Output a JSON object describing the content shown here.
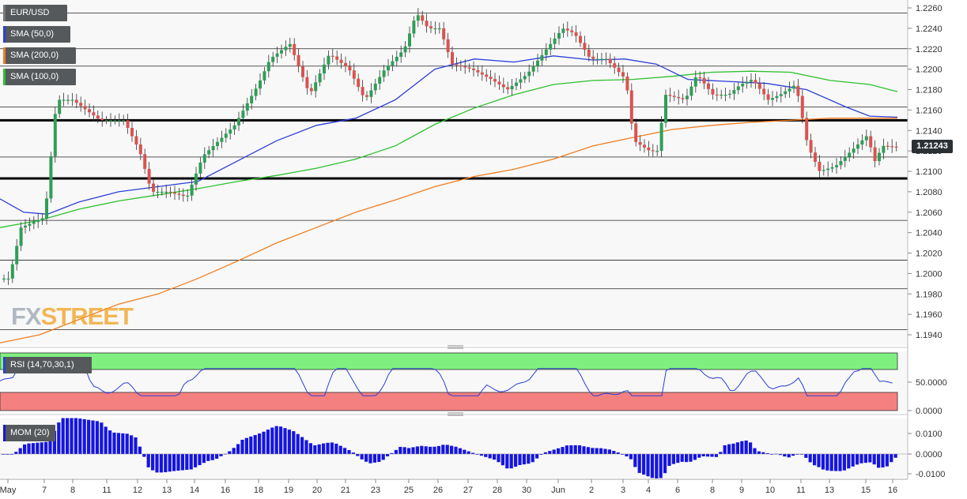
{
  "chart_data": {
    "type": "candlestick",
    "symbol": "EUR/USD",
    "last_price": "1.21243",
    "watermark": {
      "prefix": "FX",
      "suffix": "STREET"
    },
    "indicators": {
      "sma50": {
        "label": "SMA (50,0)",
        "color": "#2b3fd6"
      },
      "sma200": {
        "label": "SMA (200,0)",
        "color": "#f07d1e"
      },
      "sma100": {
        "label": "SMA (100,0)",
        "color": "#2ec02e"
      }
    },
    "price_axis": {
      "ylim": [
        1.193,
        1.2265
      ],
      "ticks": [
        "1.2260",
        "1.2240",
        "1.2220",
        "1.2200",
        "1.2180",
        "1.2160",
        "1.2140",
        "1.2120",
        "1.2100",
        "1.2080",
        "1.2060",
        "1.2040",
        "1.2020",
        "1.2000",
        "1.1980",
        "1.1960",
        "1.1940"
      ]
    },
    "x_axis": {
      "labels": [
        "May",
        "7",
        "8",
        "11",
        "12",
        "13",
        "14",
        "16",
        "18",
        "19",
        "20",
        "21",
        "23",
        "25",
        "26",
        "27",
        "28",
        "30",
        "Jun",
        "2",
        "3",
        "4",
        "6",
        "8",
        "9",
        "10",
        "11",
        "13",
        "15",
        "16"
      ]
    },
    "horizontal_levels": [
      1.2255,
      1.222,
      1.2203,
      1.2163,
      1.2114,
      1.2052,
      1.2013,
      1.1985,
      1.1945
    ],
    "bold_levels": [
      1.215,
      1.2093
    ],
    "rsi": {
      "label": "RSI (14,70,30,1)",
      "ticks": [
        "50.0000",
        "0.0000"
      ],
      "overbought_color": "#7ff07f",
      "oversold_color": "#f48080",
      "line_color": "#2b3fd6"
    },
    "momentum": {
      "label": "MOM (20)",
      "ticks": [
        "0.0100",
        "0.0000",
        "-0.0100"
      ],
      "bar_color": "#1515e0"
    }
  }
}
